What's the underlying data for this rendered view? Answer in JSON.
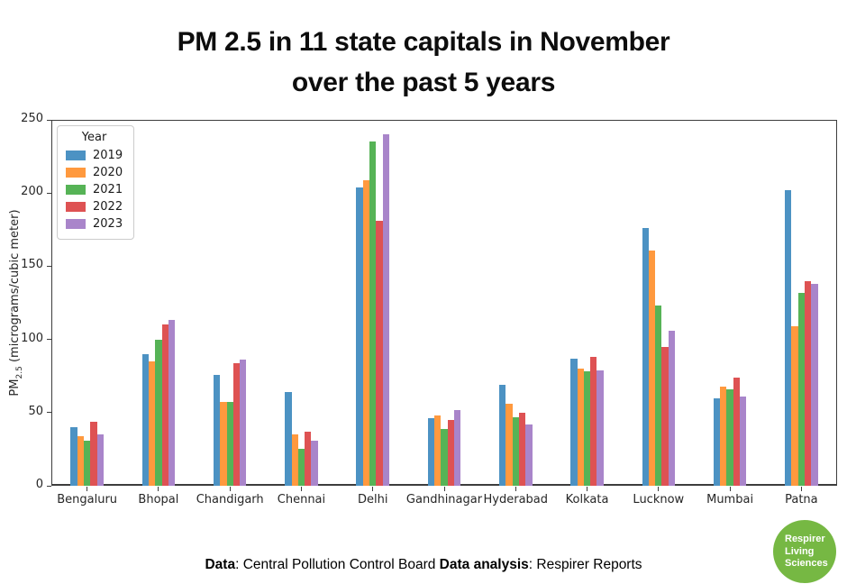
{
  "title": {
    "line1": "PM 2.5 in 11 state capitals in November",
    "line2": "over the past 5 years"
  },
  "chart_data": {
    "type": "bar",
    "title": "PM 2.5 in 11 state capitals in November over the past 5 years",
    "categories": [
      "Bengaluru",
      "Bhopal",
      "Chandigarh",
      "Chennai",
      "Delhi",
      "Gandhinagar",
      "Hyderabad",
      "Kolkata",
      "Lucknow",
      "Mumbai",
      "Patna"
    ],
    "series": [
      {
        "name": "2019",
        "color": "#4C92C3",
        "values": [
          40,
          90,
          76,
          64,
          204,
          46,
          69,
          87,
          176,
          60,
          202
        ]
      },
      {
        "name": "2020",
        "color": "#FF993E",
        "values": [
          34,
          85,
          57,
          35,
          209,
          48,
          56,
          80,
          161,
          68,
          109
        ]
      },
      {
        "name": "2021",
        "color": "#56B356",
        "values": [
          31,
          100,
          57,
          25,
          235,
          39,
          47,
          78,
          123,
          66,
          132
        ]
      },
      {
        "name": "2022",
        "color": "#DE5253",
        "values": [
          44,
          110,
          84,
          37,
          181,
          45,
          50,
          88,
          95,
          74,
          140
        ]
      },
      {
        "name": "2023",
        "color": "#A985CA",
        "values": [
          35,
          113,
          86,
          31,
          240,
          52,
          42,
          79,
          106,
          61,
          138
        ]
      }
    ],
    "legend_title": "Year",
    "legend_position": "upper left",
    "xlabel": "",
    "ylabel": "PM2.5 (micrograms/cubic meter)",
    "ylabel_parts": {
      "prefix": "PM",
      "sub": "2.5",
      "rest": " (micrograms/cubic meter)"
    },
    "ylim": [
      0,
      250
    ],
    "yticks": [
      0,
      50,
      100,
      150,
      200,
      250
    ],
    "grid": false
  },
  "footer": {
    "label1": "Data",
    "text1": ": Central Pollution Control Board ",
    "label2": "Data analysis",
    "text2": ": Respirer Reports"
  },
  "logo": {
    "line1": "Respirer",
    "line2": "Living",
    "line3": "Sciences",
    "color": "#76B843"
  }
}
